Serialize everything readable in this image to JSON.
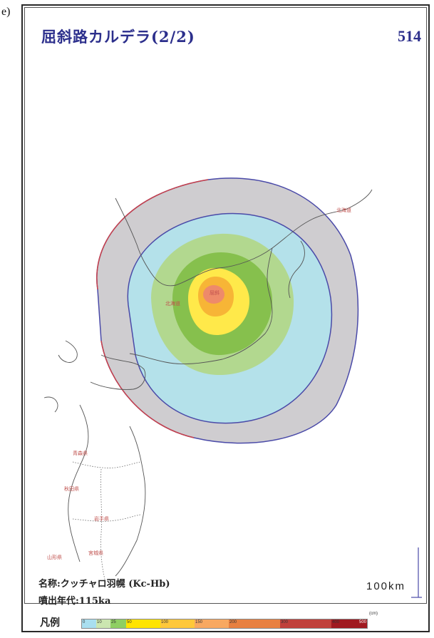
{
  "panel_letter": "e)",
  "title": "屈斜路カルデラ(2/2)",
  "page_number": "514",
  "deposit_name": "名称:クッチャロ羽幌 (Kc-Hb)",
  "eruption_age": "噴出年代:115ka",
  "scale_bar_label": "100km",
  "legend": {
    "title": "凡例",
    "unit": "(cm)",
    "ticks": [
      "0",
      "10",
      "25",
      "50",
      "100",
      "150",
      "200",
      "300",
      "400",
      "500"
    ],
    "colors": [
      "#a9dff0",
      "#cbe6b0",
      "#8fcf63",
      "#ffe400",
      "#ffc83a",
      "#f8a860",
      "#e88040",
      "#c0403a",
      "#a01a20"
    ]
  },
  "isopach_colors": {
    "outer_gray": "#cfcdd0",
    "light_blue": "#b4e1ea",
    "light_green": "#b2d88f",
    "green": "#86c04d",
    "yellow": "#ffe94a",
    "orange": "#f7b536",
    "salmon": "#ee8a6a"
  },
  "place_labels": {
    "hokkaido": "北海道",
    "hokkaido_left": "北海道",
    "aomori": "青森県",
    "akita": "秋田県",
    "iwate": "岩手県",
    "yamagata": "山形県",
    "miyagi": "宮城県",
    "vent": "屈斜"
  }
}
